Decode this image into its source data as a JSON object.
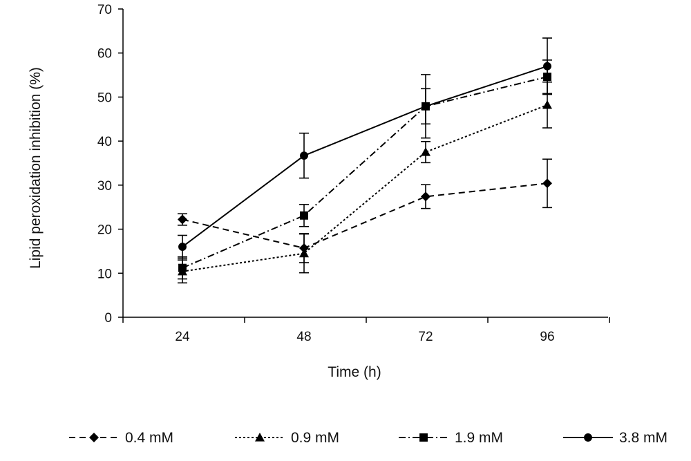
{
  "chart_data": {
    "type": "line",
    "title": "",
    "xlabel": "Time (h)",
    "ylabel": "Lipid peroxidation inhibition (%)",
    "ylim": [
      0,
      70
    ],
    "yticks": [
      "0",
      "10",
      "20",
      "30",
      "40",
      "50",
      "60",
      "70"
    ],
    "categories": [
      "24",
      "48",
      "72",
      "96"
    ],
    "grid": false,
    "legend_position": "bottom",
    "series": [
      {
        "name": "0.4 mM",
        "marker": "diamond",
        "dash": "dashed",
        "color": "#000000",
        "values": [
          22.2,
          15.7,
          27.4,
          30.4
        ],
        "errors": [
          1.3,
          3.3,
          2.7,
          5.5
        ]
      },
      {
        "name": "0.9 mM",
        "marker": "triangle",
        "dash": "dotted",
        "color": "#000000",
        "values": [
          10.4,
          14.5,
          37.5,
          48.2
        ],
        "errors": [
          2.6,
          4.4,
          2.4,
          5.2
        ]
      },
      {
        "name": "1.9 mM",
        "marker": "square",
        "dash": "dash-dot",
        "color": "#000000",
        "values": [
          11.2,
          23.1,
          47.9,
          54.6
        ],
        "errors": [
          2.5,
          2.5,
          7.2,
          3.8
        ]
      },
      {
        "name": "3.8 mM",
        "marker": "circle",
        "dash": "solid",
        "color": "#000000",
        "values": [
          16.0,
          36.7,
          47.9,
          57.0
        ],
        "errors": [
          2.6,
          5.1,
          4.0,
          6.4
        ]
      }
    ]
  }
}
